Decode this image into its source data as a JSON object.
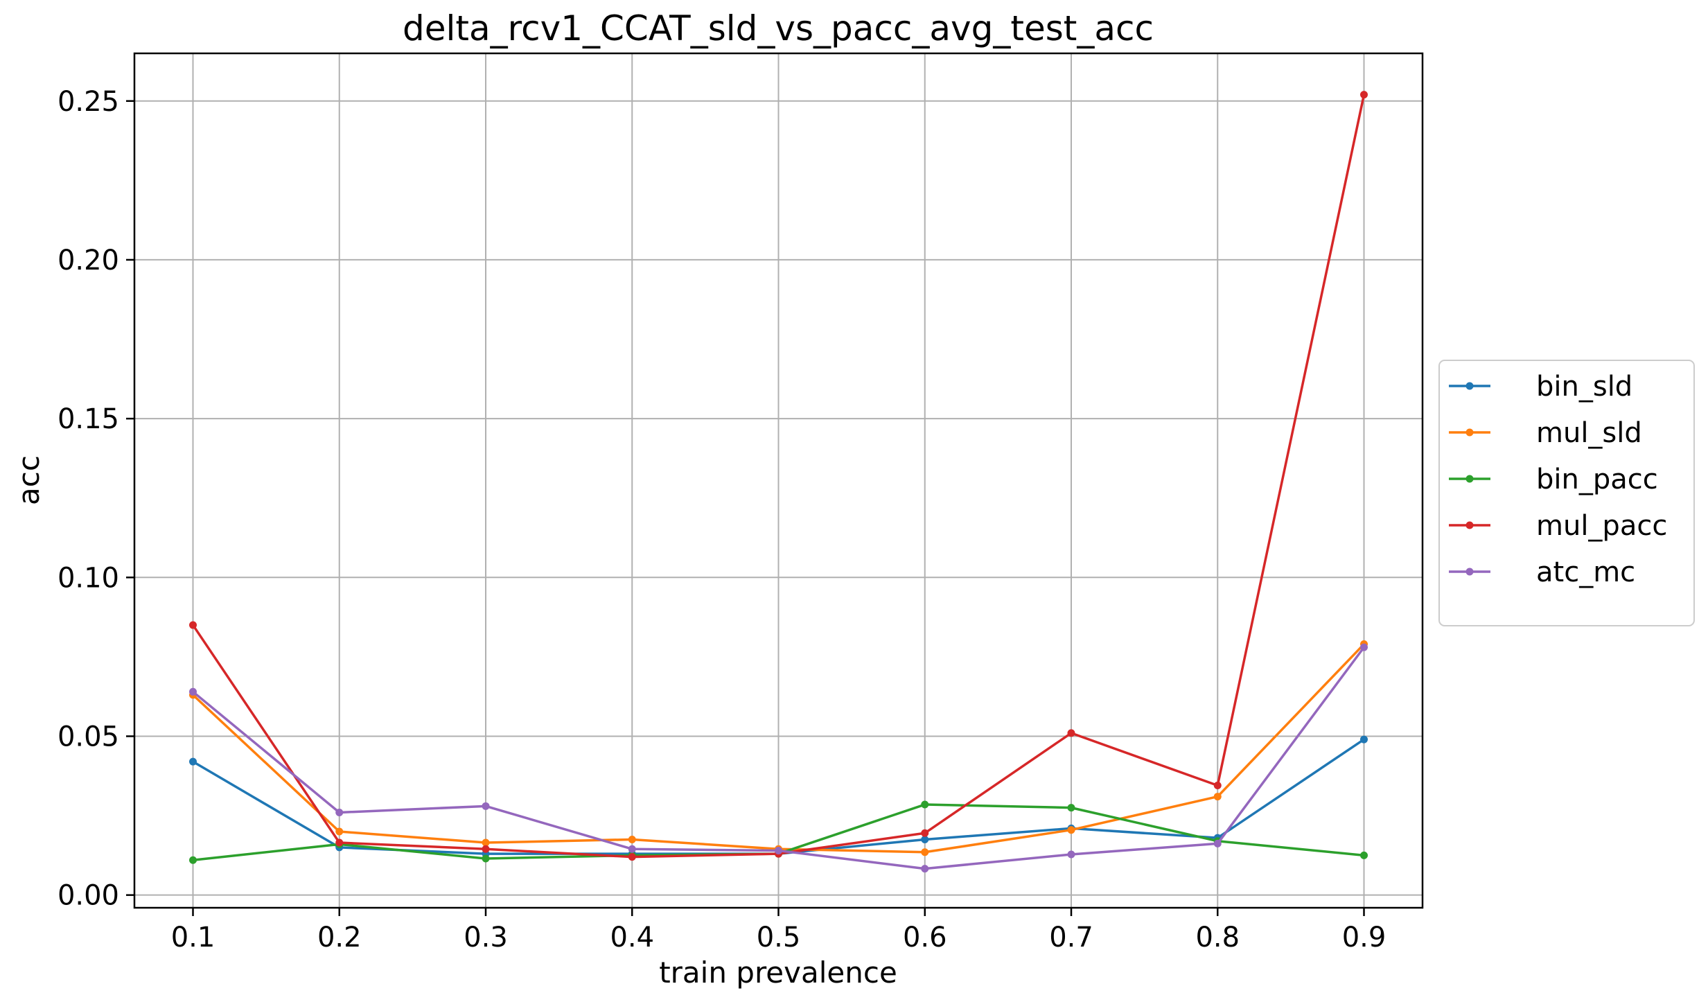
{
  "chart_data": {
    "type": "line",
    "title": "delta_rcv1_CCAT_sld_vs_pacc_avg_test_acc",
    "xlabel": "train prevalence",
    "ylabel": "acc",
    "x": [
      0.1,
      0.2,
      0.3,
      0.4,
      0.5,
      0.6,
      0.7,
      0.8,
      0.9
    ],
    "x_tick_labels": [
      "0.1",
      "0.2",
      "0.3",
      "0.4",
      "0.5",
      "0.6",
      "0.7",
      "0.8",
      "0.9"
    ],
    "y_ticks": [
      0.0,
      0.05,
      0.1,
      0.15,
      0.2,
      0.25
    ],
    "y_tick_labels": [
      "0.00",
      "0.05",
      "0.10",
      "0.15",
      "0.20",
      "0.25"
    ],
    "xlim": [
      0.06,
      0.94
    ],
    "ylim": [
      -0.004,
      0.265
    ],
    "grid": true,
    "legend_position": "right, outside plot area",
    "series": [
      {
        "name": "bin_sld",
        "color": "#1f77b4",
        "values": [
          0.042,
          0.015,
          0.013,
          0.013,
          0.013,
          0.0175,
          0.021,
          0.018,
          0.049
        ]
      },
      {
        "name": "mul_sld",
        "color": "#ff7f0e",
        "values": [
          0.063,
          0.02,
          0.0165,
          0.0175,
          0.0145,
          0.0135,
          0.0205,
          0.031,
          0.079
        ]
      },
      {
        "name": "bin_pacc",
        "color": "#2ca02c",
        "values": [
          0.011,
          0.016,
          0.0115,
          0.0125,
          0.013,
          0.0285,
          0.0275,
          0.017,
          0.0125
        ]
      },
      {
        "name": "mul_pacc",
        "color": "#d62728",
        "values": [
          0.085,
          0.0165,
          0.0145,
          0.012,
          0.013,
          0.0195,
          0.051,
          0.0345,
          0.252
        ]
      },
      {
        "name": "atc_mc",
        "color": "#9467bd",
        "values": [
          0.064,
          0.026,
          0.028,
          0.0145,
          0.014,
          0.0083,
          0.0128,
          0.0162,
          0.078
        ]
      }
    ]
  }
}
